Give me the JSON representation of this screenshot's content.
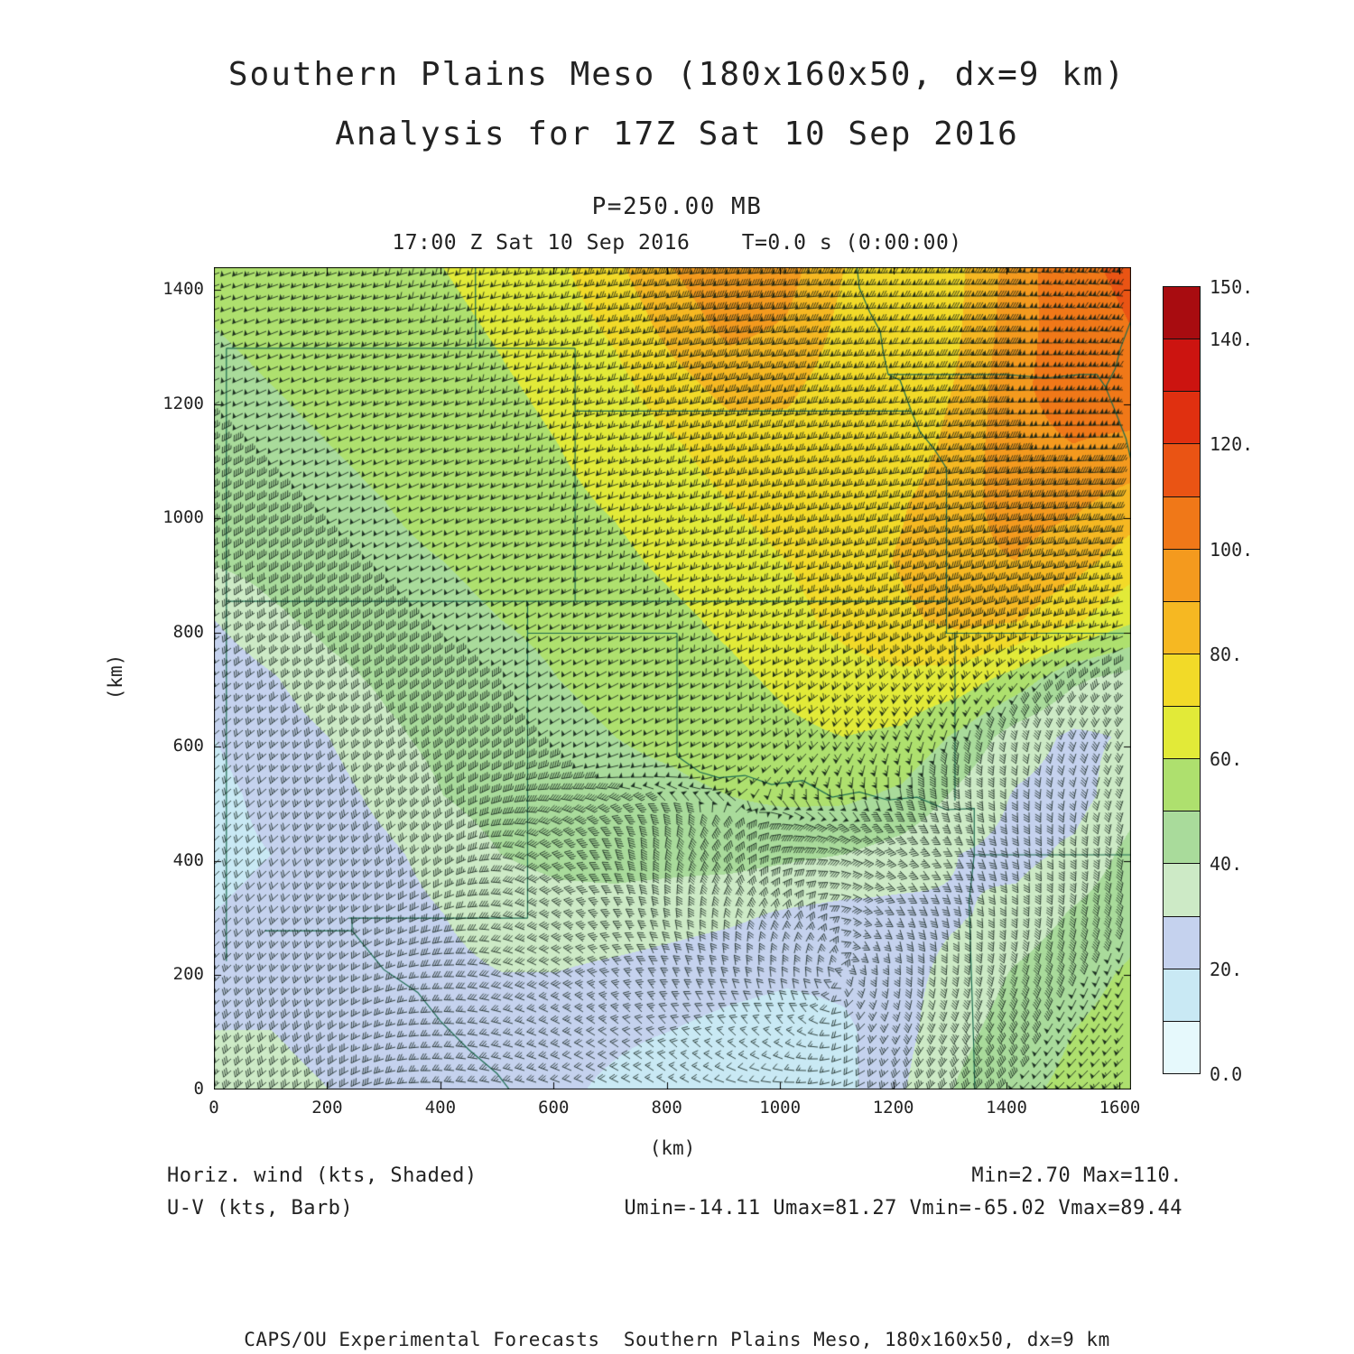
{
  "header": {
    "title_line1": "Southern Plains Meso (180x160x50, dx=9 km)",
    "title_line2": "Analysis for 17Z Sat 10 Sep 2016",
    "pressure_label": "P=250.00 MB",
    "time_label": "17:00 Z Sat 10 Sep 2016    T=0.0 s (0:00:00)"
  },
  "axes": {
    "x_label": "(km)",
    "y_label": "(km)",
    "x_ticks": [
      0,
      200,
      400,
      600,
      800,
      1000,
      1200,
      1400,
      1600
    ],
    "y_ticks": [
      0,
      200,
      400,
      600,
      800,
      1000,
      1200,
      1400
    ]
  },
  "colorbar": {
    "labels": [
      {
        "text": "150.",
        "level": 150
      },
      {
        "text": "140.",
        "level": 140
      },
      {
        "text": "120.",
        "level": 120
      },
      {
        "text": "100.",
        "level": 100
      },
      {
        "text": "80.",
        "level": 80
      },
      {
        "text": "60.",
        "level": 60
      },
      {
        "text": "40.",
        "level": 40
      },
      {
        "text": "20.",
        "level": 20
      },
      {
        "text": "0.0",
        "level": 0
      }
    ]
  },
  "legend": {
    "shaded_label": "Horiz. wind (kts, Shaded)",
    "barb_label": "U-V (kts, Barb)",
    "minmax": "Min=2.70 Max=110.",
    "uv_stats": "Umin=-14.11 Umax=81.27 Vmin=-65.02 Vmax=89.44"
  },
  "credit": "CAPS/OU Experimental Forecasts  Southern Plains Meso, 180x160x50, dx=9 km",
  "chart_data": {
    "type": "heatmap",
    "title": "Southern Plains Meso (180x160x50, dx=9 km) Analysis for 17Z Sat 10 Sep 2016",
    "field": "Horizontal wind speed (kts, shaded) with U-V wind barbs (kts) at P=250.00 MB",
    "x_range_km": [
      0,
      1620
    ],
    "y_range_km": [
      0,
      1440
    ],
    "levels_kts": [
      0,
      10,
      20,
      30,
      40,
      50,
      60,
      70,
      80,
      90,
      100,
      110,
      120,
      130,
      140,
      150
    ],
    "palette": [
      "#e6f9fc",
      "#c9e9f4",
      "#c5d2ee",
      "#cdeac6",
      "#a9db9b",
      "#aee06e",
      "#e2ea38",
      "#f2da28",
      "#f6b822",
      "#f49a1e",
      "#f07818",
      "#ea5414",
      "#e03010",
      "#cc1410",
      "#a80c10"
    ],
    "stats": {
      "min": 2.7,
      "max": 110.0,
      "umin": -14.11,
      "umax": 81.27,
      "vmin": -65.02,
      "vmax": 89.44
    },
    "speed_grid_kts": {
      "nx": 17,
      "ny": 15,
      "order": "rows north (y=1440 km) to south (y=0 km), columns west (x=0) to east (x=1620 km)",
      "values": [
        [
          52,
          54,
          56,
          58,
          60,
          63,
          68,
          78,
          90,
          98,
          94,
          80,
          72,
          78,
          95,
          108,
          112
        ],
        [
          50,
          52,
          54,
          56,
          58,
          61,
          65,
          72,
          84,
          93,
          89,
          77,
          71,
          79,
          96,
          106,
          110
        ],
        [
          48,
          50,
          52,
          54,
          56,
          59,
          62,
          67,
          76,
          84,
          82,
          75,
          71,
          81,
          98,
          105,
          107
        ],
        [
          46,
          48,
          50,
          52,
          55,
          57,
          60,
          64,
          69,
          75,
          77,
          75,
          73,
          84,
          97,
          100,
          98
        ],
        [
          44,
          46,
          48,
          50,
          53,
          55,
          58,
          61,
          65,
          70,
          74,
          77,
          79,
          87,
          94,
          92,
          86
        ],
        [
          41,
          44,
          46,
          48,
          50,
          52,
          55,
          58,
          62,
          66,
          70,
          75,
          81,
          88,
          90,
          84,
          75
        ],
        [
          30,
          38,
          43,
          46,
          48,
          50,
          52,
          55,
          58,
          62,
          67,
          73,
          78,
          83,
          81,
          72,
          62
        ],
        [
          23,
          29,
          37,
          42,
          45,
          47,
          50,
          52,
          55,
          58,
          62,
          66,
          68,
          66,
          56,
          42,
          36
        ],
        [
          20,
          24,
          30,
          38,
          43,
          46,
          48,
          50,
          52,
          55,
          58,
          60,
          58,
          48,
          35,
          28,
          31
        ],
        [
          18,
          22,
          26,
          33,
          40,
          44,
          46,
          47,
          48,
          50,
          52,
          52,
          48,
          38,
          29,
          26,
          36
        ],
        [
          18,
          20,
          24,
          28,
          34,
          40,
          43,
          44,
          44,
          44,
          42,
          40,
          36,
          30,
          27,
          32,
          43
        ],
        [
          20,
          22,
          24,
          26,
          30,
          34,
          36,
          36,
          34,
          32,
          29,
          27,
          27,
          29,
          33,
          41,
          47
        ],
        [
          24,
          26,
          26,
          26,
          28,
          30,
          30,
          28,
          26,
          24,
          22,
          23,
          27,
          33,
          41,
          47,
          51
        ],
        [
          30,
          30,
          28,
          26,
          26,
          26,
          24,
          22,
          20,
          17,
          15,
          18,
          27,
          37,
          45,
          50,
          53
        ],
        [
          34,
          32,
          30,
          28,
          26,
          24,
          22,
          18,
          14,
          10,
          11,
          17,
          29,
          41,
          48,
          52,
          54
        ]
      ]
    },
    "wind_from_direction_deg": {
      "nx": 9,
      "ny": 8,
      "order": "rows north (y=1440 km) to south (y=0 km), columns west to east; meteorological FROM direction",
      "values": [
        [
          250,
          252,
          255,
          258,
          262,
          265,
          268,
          272,
          275
        ],
        [
          245,
          248,
          250,
          253,
          257,
          260,
          263,
          267,
          272
        ],
        [
          240,
          243,
          246,
          249,
          252,
          255,
          258,
          262,
          266
        ],
        [
          235,
          237,
          240,
          243,
          246,
          248,
          250,
          252,
          255
        ],
        [
          230,
          232,
          234,
          238,
          244,
          235,
          200,
          190,
          210
        ],
        [
          226,
          228,
          232,
          310,
          15,
          85,
          130,
          170,
          190
        ],
        [
          226,
          230,
          268,
          300,
          335,
          0,
          180,
          195,
          205
        ],
        [
          228,
          235,
          275,
          290,
          300,
          270,
          230,
          225,
          230
        ]
      ]
    },
    "state_borders_km": [
      [
        [
          22,
          225
        ],
        [
          22,
          1298
        ]
      ],
      [
        [
          22,
          1298
        ],
        [
          638,
          1298
        ]
      ],
      [
        [
          462,
          1298
        ],
        [
          462,
          1440
        ]
      ],
      [
        [
          638,
          855
        ],
        [
          638,
          1298
        ]
      ],
      [
        [
          22,
          855
        ],
        [
          1294,
          855
        ]
      ],
      [
        [
          638,
          1188
        ],
        [
          1232,
          1188
        ]
      ],
      [
        [
          554,
          300
        ],
        [
          554,
          855
        ]
      ],
      [
        [
          554,
          799
        ],
        [
          818,
          799
        ]
      ],
      [
        [
          818,
          584
        ],
        [
          818,
          799
        ]
      ],
      [
        [
          238,
          300
        ],
        [
          554,
          300
        ]
      ],
      [
        [
          90,
          278
        ],
        [
          244,
          278
        ],
        [
          244,
          300
        ]
      ],
      [
        [
          244,
          278
        ],
        [
          300,
          210
        ],
        [
          360,
          170
        ],
        [
          400,
          120
        ],
        [
          450,
          70
        ],
        [
          500,
          28
        ],
        [
          522,
          0
        ]
      ],
      [
        [
          818,
          584
        ],
        [
          858,
          556
        ],
        [
          892,
          546
        ],
        [
          938,
          550
        ],
        [
          985,
          534
        ],
        [
          1040,
          541
        ],
        [
          1092,
          512
        ],
        [
          1140,
          521
        ],
        [
          1190,
          507
        ],
        [
          1242,
          512
        ],
        [
          1294,
          490
        ],
        [
          1343,
          492
        ],
        [
          1343,
          411
        ],
        [
          1334,
          330
        ],
        [
          1338,
          200
        ],
        [
          1342,
          80
        ],
        [
          1344,
          0
        ]
      ],
      [
        [
          1294,
          799
        ],
        [
          1294,
          1088
        ],
        [
          1272,
          1122
        ],
        [
          1247,
          1152
        ],
        [
          1232,
          1188
        ]
      ],
      [
        [
          1232,
          1188
        ],
        [
          1212,
          1242
        ],
        [
          1191,
          1252
        ],
        [
          1182,
          1292
        ],
        [
          1177,
          1328
        ],
        [
          1158,
          1362
        ],
        [
          1140,
          1404
        ],
        [
          1136,
          1440
        ]
      ],
      [
        [
          1191,
          1252
        ],
        [
          1400,
          1252
        ],
        [
          1470,
          1246
        ],
        [
          1530,
          1252
        ],
        [
          1560,
          1252
        ],
        [
          1575,
          1230
        ]
      ],
      [
        [
          1575,
          1230
        ],
        [
          1592,
          1262
        ],
        [
          1602,
          1300
        ],
        [
          1619,
          1344
        ],
        [
          1620,
          1365
        ]
      ],
      [
        [
          1575,
          1230
        ],
        [
          1596,
          1178
        ],
        [
          1611,
          1140
        ],
        [
          1620,
          1102
        ]
      ],
      [
        [
          1292,
          799
        ],
        [
          1620,
          799
        ]
      ],
      [
        [
          1309,
          506
        ],
        [
          1309,
          799
        ]
      ],
      [
        [
          1343,
          411
        ],
        [
          1620,
          411
        ]
      ]
    ]
  }
}
